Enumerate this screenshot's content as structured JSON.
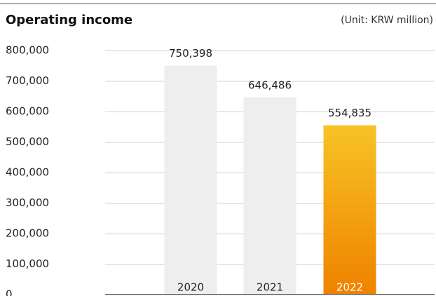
{
  "chart_data": {
    "type": "bar",
    "title": "Operating income",
    "subtitle": "(Unit: KRW million)",
    "categories": [
      "2020",
      "2021",
      "2022"
    ],
    "values": [
      750398,
      646486,
      554835
    ],
    "value_labels": [
      "750,398",
      "646,486",
      "554,835"
    ],
    "colors": [
      "#eeeeee",
      "#eeeeee",
      "#f7c325"
    ],
    "gradient_to": [
      "#eeeeee",
      "#eeeeee",
      "#ef8200"
    ],
    "ylim": [
      0,
      800000
    ],
    "yticks": [
      {
        "value": 0,
        "label": "0"
      },
      {
        "value": 100000,
        "label": "100,000"
      },
      {
        "value": 200000,
        "label": "200,000"
      },
      {
        "value": 300000,
        "label": "300,000"
      },
      {
        "value": 400000,
        "label": "400,000"
      },
      {
        "value": 500000,
        "label": "500,000"
      },
      {
        "value": 600000,
        "label": "600,000"
      },
      {
        "value": 700000,
        "label": "700,000"
      },
      {
        "value": 800000,
        "label": "800,000"
      }
    ],
    "grid": true
  }
}
